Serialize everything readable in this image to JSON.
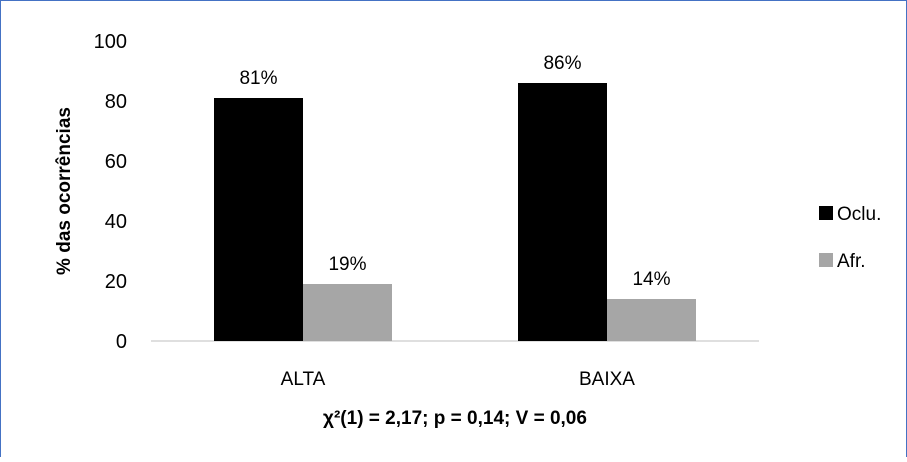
{
  "chart_data": {
    "type": "bar",
    "title": "",
    "ylabel": "% das ocorrências",
    "xlabel": "",
    "ylim": [
      0,
      100
    ],
    "yticks": [
      0,
      20,
      40,
      60,
      80,
      100
    ],
    "categories": [
      "ALTA",
      "BAIXA"
    ],
    "series": [
      {
        "name": "Oclu.",
        "color": "#000000",
        "values": [
          81,
          86
        ],
        "labels": [
          "81%",
          "86%"
        ]
      },
      {
        "name": "Afr.",
        "color": "#a6a6a6",
        "values": [
          19,
          14
        ],
        "labels": [
          "19%",
          "14%"
        ]
      }
    ],
    "grid": false,
    "legend_position": "right",
    "statistics_text": "χ²(1) = 2,17; p = 0,14; V = 0,06"
  }
}
